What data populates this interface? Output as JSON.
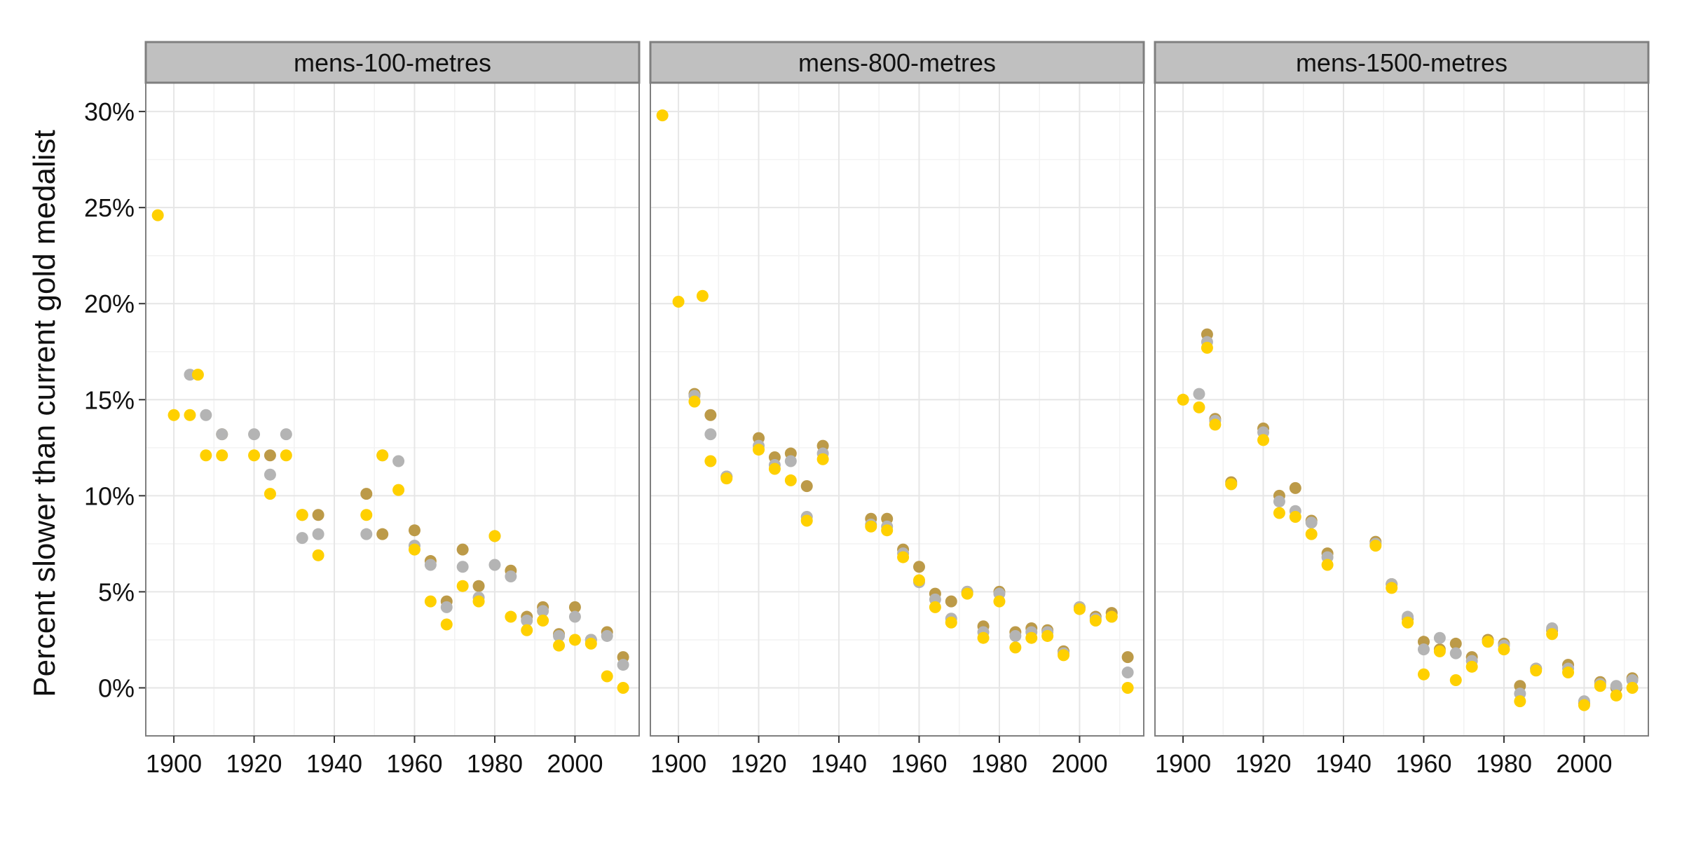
{
  "chart_data": {
    "type": "scatter",
    "ylabel": "Percent slower than current gold medalist",
    "xlim": [
      1893,
      2016
    ],
    "ylim": [
      -2.5,
      31.5
    ],
    "x_ticks": [
      1900,
      1920,
      1940,
      1960,
      1980,
      2000
    ],
    "x_tick_labels": [
      "1900",
      "1920",
      "1940",
      "1960",
      "1980",
      "2000"
    ],
    "y_ticks": [
      0,
      5,
      10,
      15,
      20,
      25,
      30
    ],
    "y_tick_labels": [
      "0%",
      "5%",
      "10%",
      "15%",
      "20%",
      "25%",
      "30%"
    ],
    "grid": true,
    "colors": {
      "gold": "#FFD000",
      "silver": "#B4B4B4",
      "bronze": "#BC9A48",
      "strip": "#C0C0C0",
      "grid": "#E6E6E6",
      "border": "#7F7F7F"
    },
    "series_order": [
      "bronze",
      "silver",
      "gold"
    ],
    "panels": [
      {
        "title": "mens-100-metres",
        "gold": [
          [
            1896,
            24.6
          ],
          [
            1900,
            14.2
          ],
          [
            1904,
            14.2
          ],
          [
            1906,
            16.3
          ],
          [
            1908,
            12.1
          ],
          [
            1912,
            12.1
          ],
          [
            1920,
            12.1
          ],
          [
            1924,
            10.1
          ],
          [
            1928,
            12.1
          ],
          [
            1932,
            9.0
          ],
          [
            1936,
            6.9
          ],
          [
            1948,
            9.0
          ],
          [
            1952,
            12.1
          ],
          [
            1956,
            10.3
          ],
          [
            1960,
            7.2
          ],
          [
            1964,
            4.5
          ],
          [
            1968,
            3.3
          ],
          [
            1972,
            5.3
          ],
          [
            1976,
            4.5
          ],
          [
            1980,
            7.9
          ],
          [
            1984,
            3.7
          ],
          [
            1988,
            3.0
          ],
          [
            1992,
            3.5
          ],
          [
            1996,
            2.2
          ],
          [
            2000,
            2.5
          ],
          [
            2004,
            2.3
          ],
          [
            2008,
            0.6
          ],
          [
            2012,
            0.0
          ]
        ],
        "silver": [
          [
            1904,
            16.3
          ],
          [
            1908,
            14.2
          ],
          [
            1912,
            13.2
          ],
          [
            1920,
            13.2
          ],
          [
            1924,
            11.1
          ],
          [
            1928,
            13.2
          ],
          [
            1932,
            7.8
          ],
          [
            1936,
            8.0
          ],
          [
            1948,
            8.0
          ],
          [
            1952,
            12.1
          ],
          [
            1956,
            11.8
          ],
          [
            1960,
            7.4
          ],
          [
            1964,
            6.4
          ],
          [
            1968,
            4.2
          ],
          [
            1972,
            6.3
          ],
          [
            1976,
            4.7
          ],
          [
            1980,
            6.4
          ],
          [
            1984,
            5.8
          ],
          [
            1988,
            3.5
          ],
          [
            1992,
            4.0
          ],
          [
            1996,
            2.7
          ],
          [
            2000,
            3.7
          ],
          [
            2004,
            2.5
          ],
          [
            2008,
            2.7
          ],
          [
            2012,
            1.2
          ]
        ],
        "bronze": [
          [
            1912,
            13.2
          ],
          [
            1924,
            12.1
          ],
          [
            1932,
            9.0
          ],
          [
            1936,
            9.0
          ],
          [
            1948,
            10.1
          ],
          [
            1952,
            8.0
          ],
          [
            1960,
            8.2
          ],
          [
            1964,
            6.6
          ],
          [
            1968,
            4.5
          ],
          [
            1972,
            7.2
          ],
          [
            1976,
            5.3
          ],
          [
            1980,
            7.9
          ],
          [
            1984,
            6.1
          ],
          [
            1988,
            3.7
          ],
          [
            1992,
            4.2
          ],
          [
            1996,
            2.8
          ],
          [
            2000,
            4.2
          ],
          [
            2004,
            2.5
          ],
          [
            2008,
            2.9
          ],
          [
            2012,
            1.6
          ]
        ]
      },
      {
        "title": "mens-800-metres",
        "gold": [
          [
            1896,
            29.8
          ],
          [
            1900,
            20.1
          ],
          [
            1904,
            14.9
          ],
          [
            1906,
            20.4
          ],
          [
            1908,
            11.8
          ],
          [
            1912,
            10.9
          ],
          [
            1920,
            12.4
          ],
          [
            1924,
            11.4
          ],
          [
            1928,
            10.8
          ],
          [
            1932,
            8.7
          ],
          [
            1936,
            11.9
          ],
          [
            1948,
            8.4
          ],
          [
            1952,
            8.2
          ],
          [
            1956,
            6.8
          ],
          [
            1960,
            5.6
          ],
          [
            1964,
            4.2
          ],
          [
            1968,
            3.4
          ],
          [
            1972,
            4.9
          ],
          [
            1976,
            2.6
          ],
          [
            1980,
            4.5
          ],
          [
            1984,
            2.1
          ],
          [
            1988,
            2.6
          ],
          [
            1992,
            2.7
          ],
          [
            1996,
            1.7
          ],
          [
            2000,
            4.1
          ],
          [
            2004,
            3.5
          ],
          [
            2008,
            3.7
          ],
          [
            2012,
            0.0
          ]
        ],
        "silver": [
          [
            1904,
            15.2
          ],
          [
            1908,
            13.2
          ],
          [
            1912,
            11.0
          ],
          [
            1920,
            12.6
          ],
          [
            1924,
            11.6
          ],
          [
            1928,
            11.8
          ],
          [
            1932,
            8.9
          ],
          [
            1936,
            12.2
          ],
          [
            1948,
            8.5
          ],
          [
            1952,
            8.4
          ],
          [
            1956,
            7.0
          ],
          [
            1960,
            5.5
          ],
          [
            1964,
            4.6
          ],
          [
            1968,
            3.6
          ],
          [
            1972,
            5.0
          ],
          [
            1976,
            2.9
          ],
          [
            1980,
            4.9
          ],
          [
            1984,
            2.7
          ],
          [
            1988,
            2.9
          ],
          [
            1992,
            2.9
          ],
          [
            1996,
            1.8
          ],
          [
            2000,
            4.2
          ],
          [
            2004,
            3.6
          ],
          [
            2008,
            3.7
          ],
          [
            2012,
            0.8
          ]
        ],
        "bronze": [
          [
            1904,
            15.3
          ],
          [
            1908,
            14.2
          ],
          [
            1912,
            11.0
          ],
          [
            1920,
            13.0
          ],
          [
            1924,
            12.0
          ],
          [
            1928,
            12.2
          ],
          [
            1932,
            10.5
          ],
          [
            1936,
            12.6
          ],
          [
            1948,
            8.8
          ],
          [
            1952,
            8.8
          ],
          [
            1956,
            7.2
          ],
          [
            1960,
            6.3
          ],
          [
            1964,
            4.9
          ],
          [
            1968,
            4.5
          ],
          [
            1972,
            5.0
          ],
          [
            1976,
            3.2
          ],
          [
            1980,
            5.0
          ],
          [
            1984,
            2.9
          ],
          [
            1988,
            3.1
          ],
          [
            1992,
            3.0
          ],
          [
            1996,
            1.9
          ],
          [
            2000,
            4.2
          ],
          [
            2004,
            3.7
          ],
          [
            2008,
            3.9
          ],
          [
            2012,
            1.6
          ]
        ]
      },
      {
        "title": "mens-1500-metres",
        "gold": [
          [
            1900,
            15.0
          ],
          [
            1904,
            14.6
          ],
          [
            1906,
            17.7
          ],
          [
            1908,
            13.7
          ],
          [
            1912,
            10.6
          ],
          [
            1920,
            12.9
          ],
          [
            1924,
            9.1
          ],
          [
            1928,
            8.9
          ],
          [
            1932,
            8.0
          ],
          [
            1936,
            6.4
          ],
          [
            1948,
            7.4
          ],
          [
            1952,
            5.2
          ],
          [
            1956,
            3.4
          ],
          [
            1960,
            0.7
          ],
          [
            1964,
            1.9
          ],
          [
            1968,
            0.4
          ],
          [
            1972,
            1.1
          ],
          [
            1976,
            2.4
          ],
          [
            1980,
            2.0
          ],
          [
            1984,
            -0.7
          ],
          [
            1988,
            0.9
          ],
          [
            1992,
            2.8
          ],
          [
            1996,
            0.8
          ],
          [
            2000,
            -0.9
          ],
          [
            2004,
            0.1
          ],
          [
            2008,
            -0.4
          ],
          [
            2012,
            0.0
          ]
        ],
        "silver": [
          [
            1904,
            15.3
          ],
          [
            1906,
            18.0
          ],
          [
            1908,
            13.9
          ],
          [
            1912,
            10.6
          ],
          [
            1920,
            13.3
          ],
          [
            1924,
            9.7
          ],
          [
            1928,
            9.2
          ],
          [
            1932,
            8.6
          ],
          [
            1936,
            6.8
          ],
          [
            1948,
            7.5
          ],
          [
            1952,
            5.4
          ],
          [
            1956,
            3.7
          ],
          [
            1960,
            2.0
          ],
          [
            1964,
            2.6
          ],
          [
            1968,
            1.8
          ],
          [
            1972,
            1.4
          ],
          [
            1976,
            2.4
          ],
          [
            1980,
            2.2
          ],
          [
            1984,
            -0.3
          ],
          [
            1988,
            1.0
          ],
          [
            1992,
            3.1
          ],
          [
            1996,
            1.0
          ],
          [
            2000,
            -0.7
          ],
          [
            2004,
            0.2
          ],
          [
            2008,
            0.1
          ],
          [
            2012,
            0.4
          ]
        ],
        "bronze": [
          [
            1906,
            18.4
          ],
          [
            1908,
            14.0
          ],
          [
            1912,
            10.7
          ],
          [
            1920,
            13.5
          ],
          [
            1924,
            10.0
          ],
          [
            1928,
            10.4
          ],
          [
            1932,
            8.7
          ],
          [
            1936,
            7.0
          ],
          [
            1948,
            7.6
          ],
          [
            1952,
            5.4
          ],
          [
            1956,
            3.6
          ],
          [
            1960,
            2.4
          ],
          [
            1964,
            2.0
          ],
          [
            1968,
            2.3
          ],
          [
            1972,
            1.6
          ],
          [
            1976,
            2.5
          ],
          [
            1980,
            2.3
          ],
          [
            1984,
            0.1
          ],
          [
            1988,
            1.0
          ],
          [
            1992,
            3.0
          ],
          [
            1996,
            1.2
          ],
          [
            2000,
            -0.8
          ],
          [
            2004,
            0.3
          ],
          [
            2008,
            0.0
          ],
          [
            2012,
            0.5
          ]
        ]
      }
    ]
  }
}
